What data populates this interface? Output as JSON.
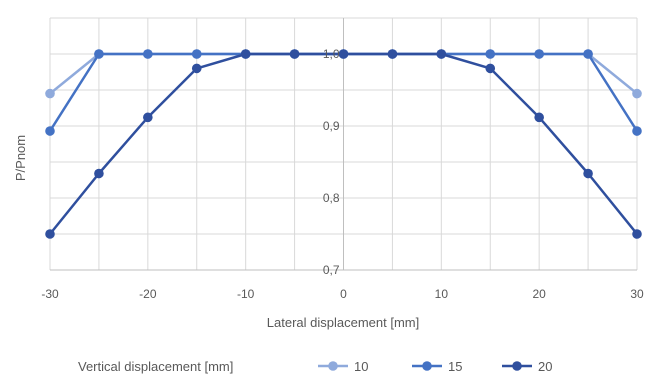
{
  "chart_data": {
    "type": "line",
    "xlabel": "Lateral displacement [mm]",
    "ylabel": "P/Pnom",
    "x": [
      -30,
      -25,
      -20,
      -15,
      -10,
      -5,
      0,
      5,
      10,
      15,
      20,
      25,
      30
    ],
    "xlim": [
      -30,
      30
    ],
    "ylim": [
      0.7,
      1.05
    ],
    "x_ticks": [
      -30,
      -20,
      -10,
      0,
      10,
      20,
      30
    ],
    "x_tick_labels": [
      "-30",
      "-20",
      "-10",
      "0",
      "10",
      "20",
      "30"
    ],
    "y_ticks": [
      0.7,
      0.8,
      0.9,
      1.0
    ],
    "y_tick_labels": [
      "0,7",
      "0,8",
      "0,9",
      "1,0"
    ],
    "grid": true,
    "legend_title": "Vertical displacement [mm]",
    "legend_position": "bottom",
    "series": [
      {
        "name": "10",
        "color": "#8faadc",
        "values": [
          0.945,
          1.0,
          1.0,
          1.0,
          1.0,
          1.0,
          1.0,
          1.0,
          1.0,
          1.0,
          1.0,
          1.0,
          0.945
        ]
      },
      {
        "name": "15",
        "color": "#4472c4",
        "values": [
          0.893,
          1.0,
          1.0,
          1.0,
          1.0,
          1.0,
          1.0,
          1.0,
          1.0,
          1.0,
          1.0,
          1.0,
          0.893
        ]
      },
      {
        "name": "20",
        "color": "#2f4f9e",
        "values": [
          0.75,
          0.834,
          0.912,
          0.98,
          1.0,
          1.0,
          1.0,
          1.0,
          1.0,
          0.98,
          0.912,
          0.834,
          0.75
        ]
      }
    ]
  }
}
